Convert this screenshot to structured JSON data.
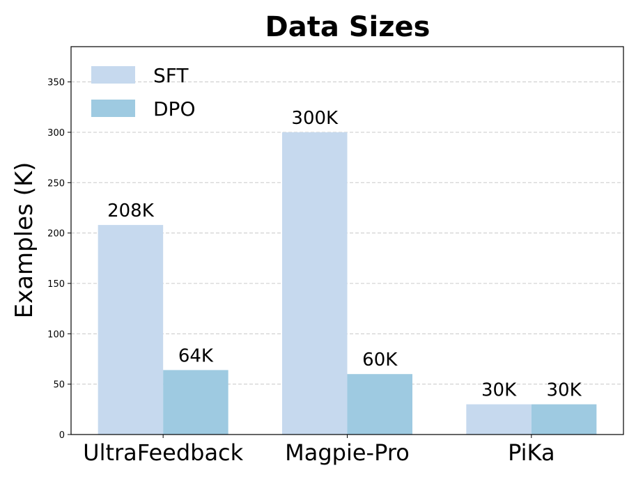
{
  "chart_data": {
    "type": "bar",
    "title": "Data Sizes",
    "xlabel": "",
    "ylabel": "Examples (K)",
    "categories": [
      "UltraFeedback",
      "Magpie-Pro",
      "PiKa"
    ],
    "series": [
      {
        "name": "SFT",
        "values": [
          208,
          300,
          30
        ],
        "labels": [
          "208K",
          "300K",
          "30K"
        ],
        "color": "#c6d9ee"
      },
      {
        "name": "DPO",
        "values": [
          64,
          60,
          30
        ],
        "labels": [
          "64K",
          "60K",
          "30K"
        ],
        "color": "#9ecae1"
      }
    ],
    "ylim": [
      0,
      385
    ],
    "yticks": [
      0,
      50,
      100,
      150,
      200,
      250,
      300,
      350
    ],
    "grid": true,
    "legend_position": "top-left"
  }
}
